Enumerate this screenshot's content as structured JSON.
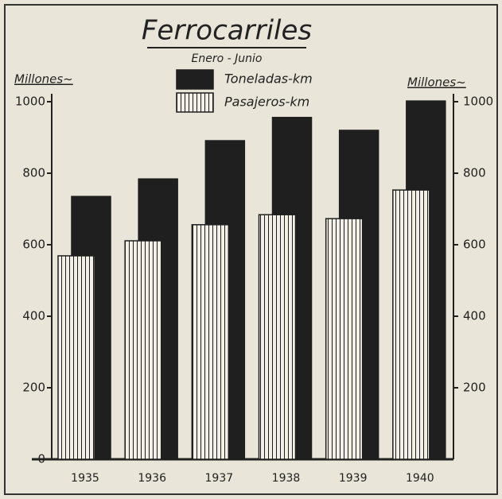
{
  "chart_data": {
    "type": "bar",
    "title": "Ferrocarriles",
    "subtitle": "Enero - Junio",
    "y_label": "Millones~",
    "y2_label": "Millones~",
    "categories": [
      "1935",
      "1936",
      "1937",
      "1938",
      "1939",
      "1940"
    ],
    "series": [
      {
        "name": "Toneladas-km",
        "color": "#1f1f1f",
        "pattern": "solid",
        "values": [
          735,
          784,
          891,
          956,
          920,
          1002
        ]
      },
      {
        "name": "Pasajeros-km",
        "color": "#1f1f1f",
        "pattern": "vertical-stripes",
        "values": [
          569,
          611,
          656,
          684,
          673,
          753
        ]
      }
    ],
    "ylim": [
      0,
      1000
    ],
    "yticks": [
      0,
      200,
      400,
      600,
      800,
      1000
    ],
    "y2lim": [
      0,
      1000
    ],
    "y2ticks": [
      200,
      400,
      600,
      800,
      1000
    ]
  }
}
